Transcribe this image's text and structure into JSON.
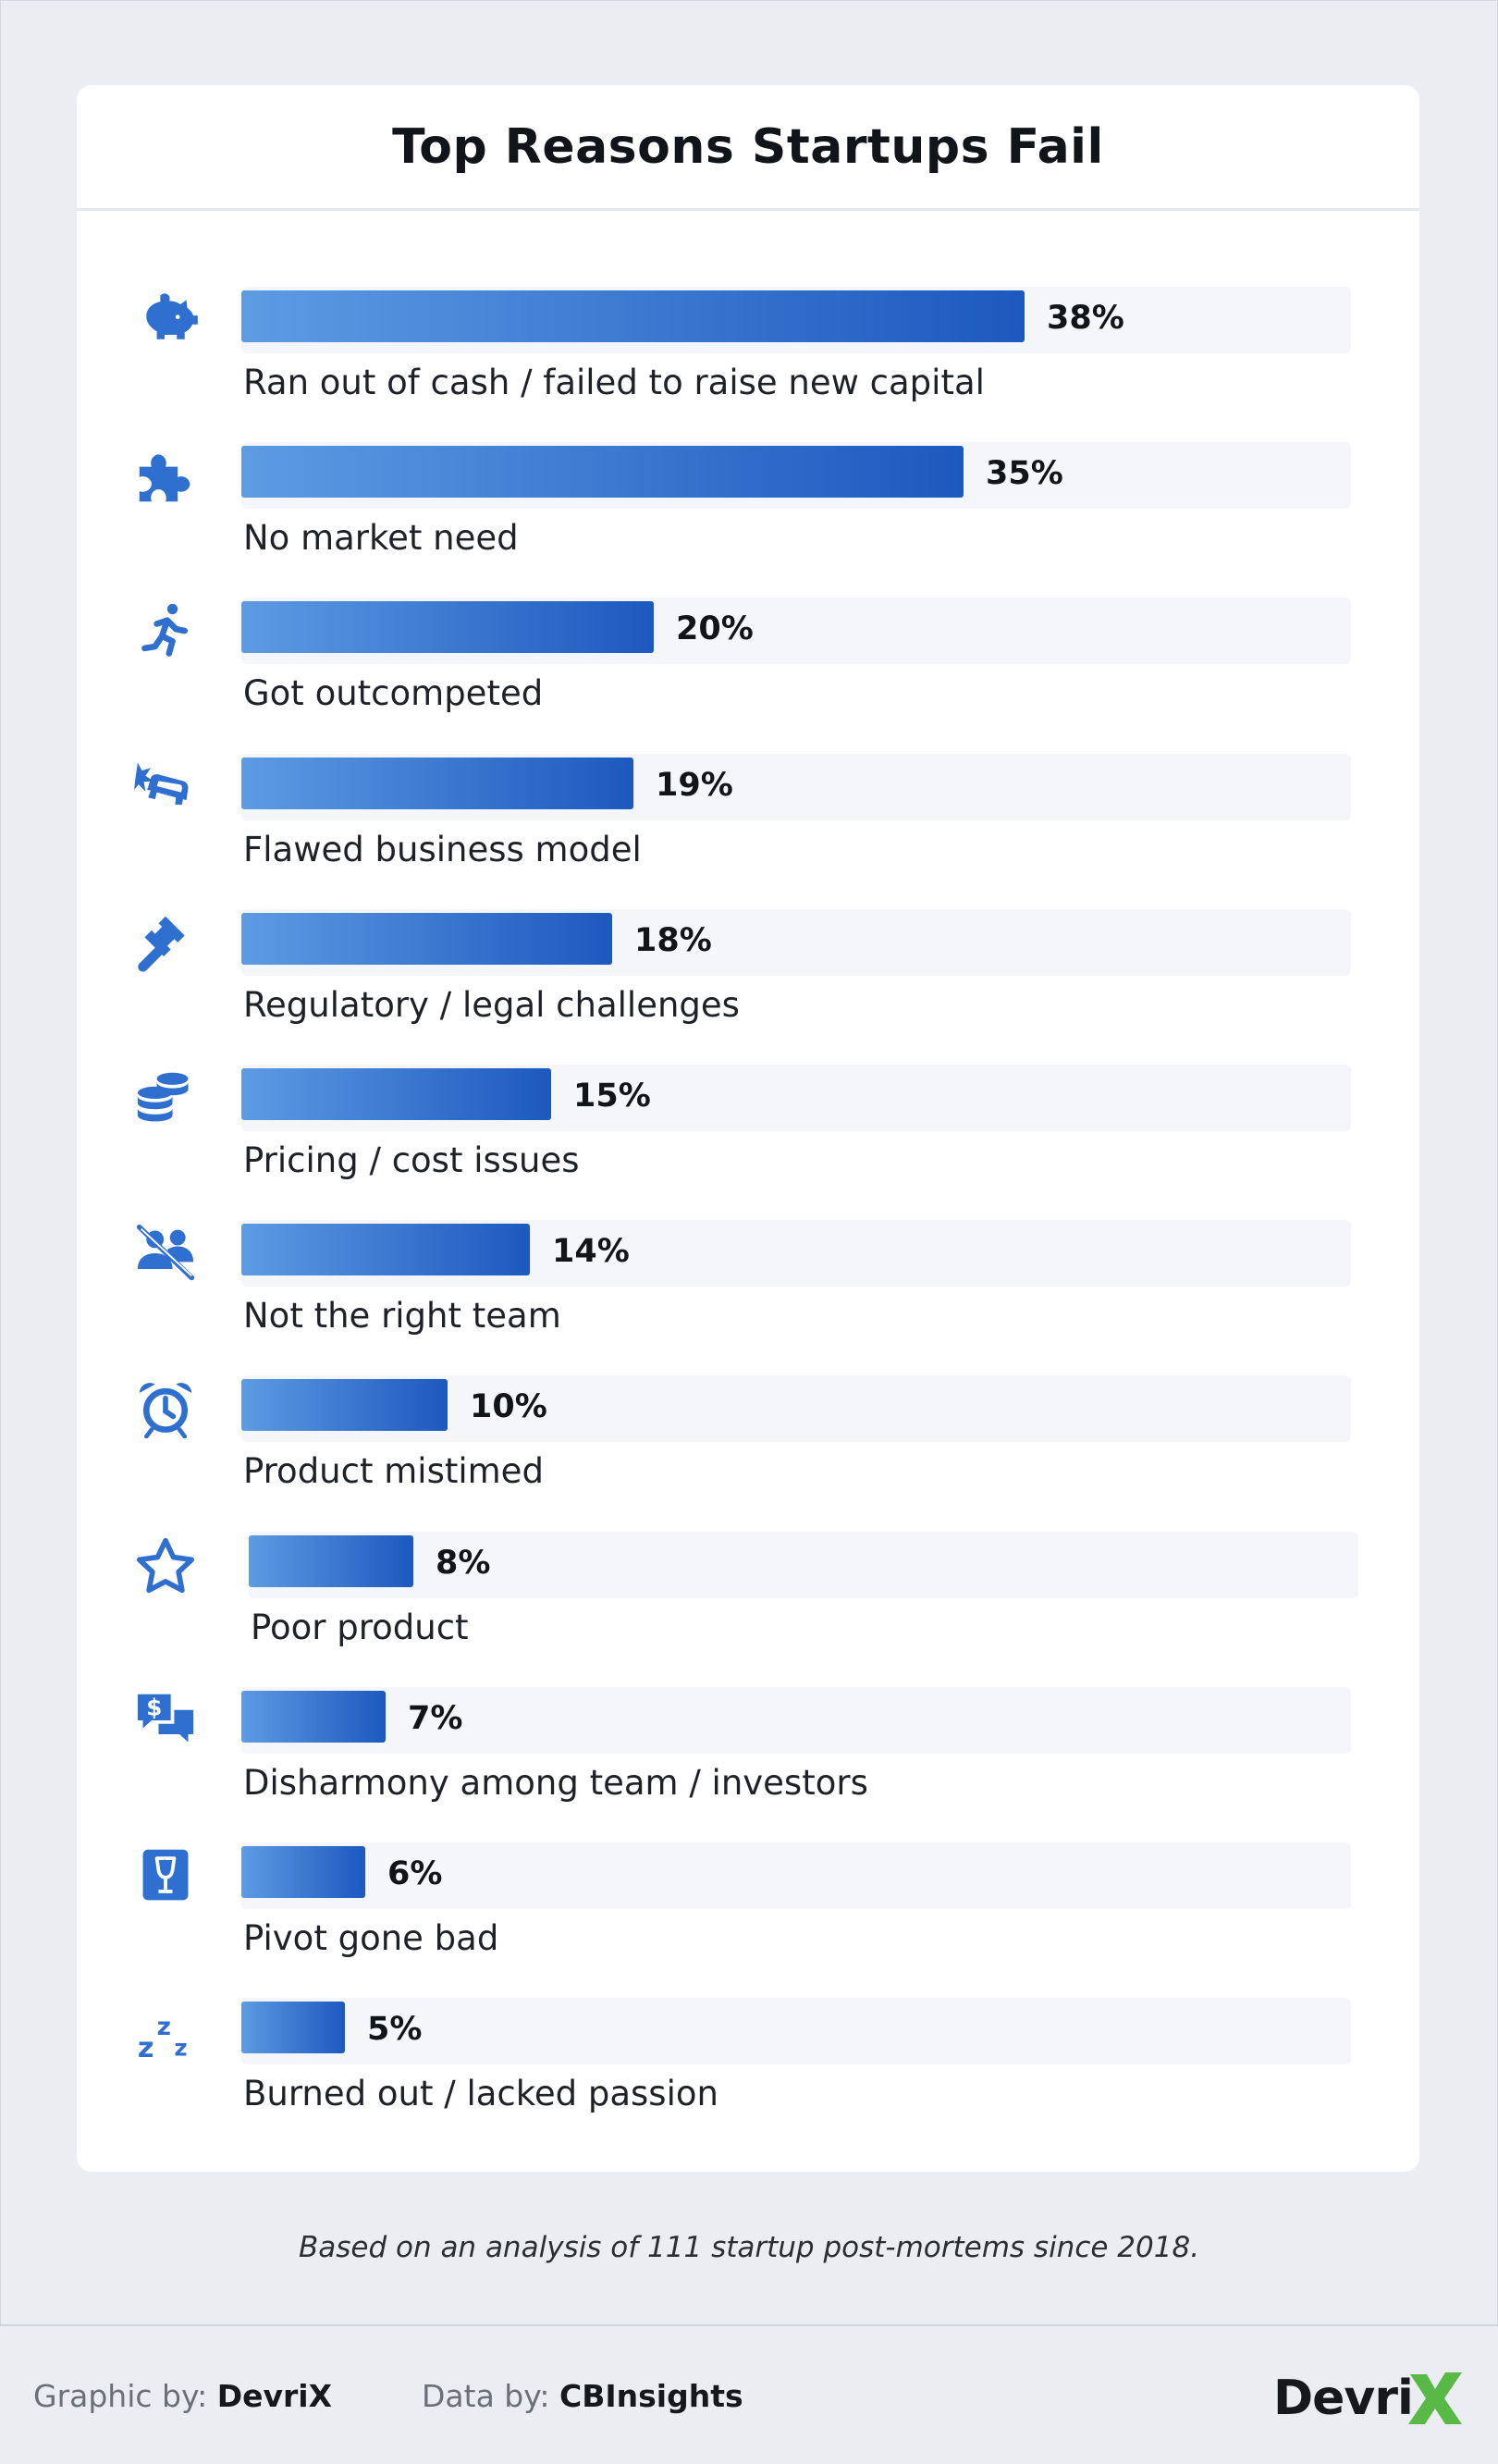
{
  "title": "Top Reasons Startups Fail",
  "chart_data": {
    "type": "bar",
    "orientation": "horizontal",
    "title": "Top Reasons Startups Fail",
    "categories": [
      "Ran out of cash / failed to raise new capital",
      "No market need",
      "Got outcompeted",
      "Flawed business model",
      "Regulatory / legal challenges",
      "Pricing / cost issues",
      "Not the right team",
      "Product mistimed",
      "Poor product",
      "Disharmony among team / investors",
      "Pivot gone bad",
      "Burned out / lacked passion"
    ],
    "values": [
      38,
      35,
      20,
      19,
      18,
      15,
      14,
      10,
      8,
      7,
      6,
      5
    ],
    "value_labels": [
      "38%",
      "35%",
      "20%",
      "19%",
      "18%",
      "15%",
      "14%",
      "10%",
      "8%",
      "7%",
      "6%",
      "5%"
    ],
    "unit": "%",
    "xlim": [
      0,
      54
    ],
    "grid": false,
    "legend": "none",
    "icons": [
      "piggy-bank-icon",
      "puzzle-icon",
      "running-person-icon",
      "car-crash-icon",
      "gavel-icon",
      "coins-icon",
      "team-slash-icon",
      "alarm-clock-icon",
      "star-icon",
      "chat-dollar-icon",
      "fragile-box-icon",
      "sleep-zzz-icon"
    ]
  },
  "source_note": "Based on an analysis of 111 startup post-mortems since 2018.",
  "footer": {
    "graphic_label": "Graphic by:",
    "graphic_value": "DevriX",
    "data_label": "Data by:",
    "data_value": "CBInsights",
    "logo_text": "Devri"
  },
  "colors": {
    "bar_start": "#5d9be3",
    "bar_end": "#1c59bf",
    "icon": "#2f6fd0",
    "track": "#f5f6fa",
    "logo_x": "#58b947"
  }
}
